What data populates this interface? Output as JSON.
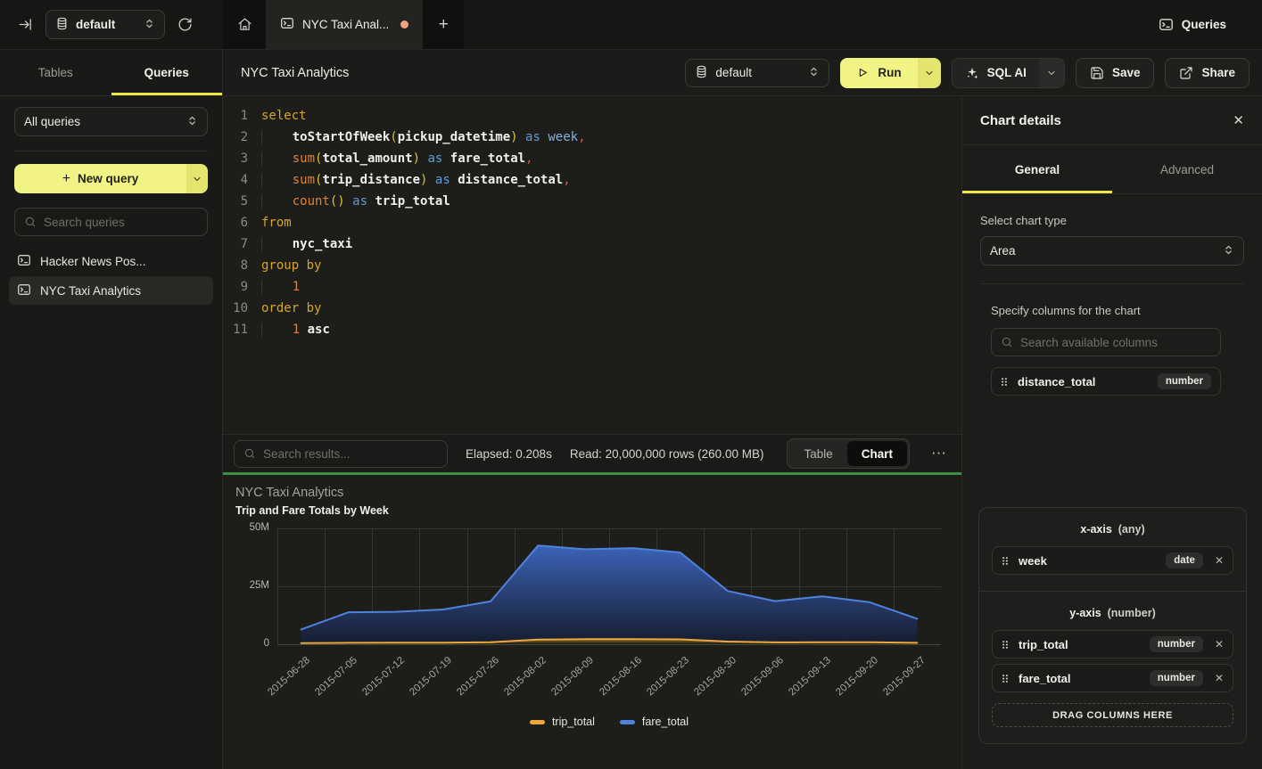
{
  "topbar": {
    "database": "default",
    "tab_title": "NYC Taxi Anal...",
    "new_tab": "+",
    "queries_nav": "Queries"
  },
  "sidebar": {
    "tabs": [
      "Tables",
      "Queries"
    ],
    "active_tab": "Queries",
    "filter": "All queries",
    "new_query": "New query",
    "search_placeholder": "Search queries",
    "queries": [
      {
        "label": "Hacker News Pos...",
        "selected": false
      },
      {
        "label": "NYC Taxi Analytics",
        "selected": true
      }
    ]
  },
  "toolbar": {
    "title": "NYC Taxi Analytics",
    "database": "default",
    "run": "Run",
    "sql_ai": "SQL AI",
    "save": "Save",
    "share": "Share"
  },
  "editor": {
    "lines": [
      {
        "n": "1",
        "t": [
          [
            "kw",
            "select"
          ]
        ]
      },
      {
        "n": "2",
        "t": [
          [
            "ind",
            "    "
          ],
          [
            "id",
            "toStartOfWeek"
          ],
          [
            "pr",
            "("
          ],
          [
            "id",
            "pickup_datetime"
          ],
          [
            "pr",
            ")"
          ],
          [
            "pl",
            " "
          ],
          [
            "as",
            "as"
          ],
          [
            "pl",
            " "
          ],
          [
            "wk",
            "week"
          ],
          [
            "cm",
            ","
          ]
        ]
      },
      {
        "n": "3",
        "t": [
          [
            "ind",
            "    "
          ],
          [
            "fn",
            "sum"
          ],
          [
            "pr",
            "("
          ],
          [
            "id",
            "total_amount"
          ],
          [
            "pr",
            ")"
          ],
          [
            "pl",
            " "
          ],
          [
            "as",
            "as"
          ],
          [
            "pl",
            " "
          ],
          [
            "id",
            "fare_total"
          ],
          [
            "cm",
            ","
          ]
        ]
      },
      {
        "n": "4",
        "t": [
          [
            "ind",
            "    "
          ],
          [
            "fn",
            "sum"
          ],
          [
            "pr",
            "("
          ],
          [
            "id",
            "trip_distance"
          ],
          [
            "pr",
            ")"
          ],
          [
            "pl",
            " "
          ],
          [
            "as",
            "as"
          ],
          [
            "pl",
            " "
          ],
          [
            "id",
            "distance_total"
          ],
          [
            "cm",
            ","
          ]
        ]
      },
      {
        "n": "5",
        "t": [
          [
            "ind",
            "    "
          ],
          [
            "fn",
            "count"
          ],
          [
            "pr",
            "()"
          ],
          [
            "pl",
            " "
          ],
          [
            "as",
            "as"
          ],
          [
            "pl",
            " "
          ],
          [
            "id",
            "trip_total"
          ]
        ]
      },
      {
        "n": "6",
        "t": [
          [
            "kw",
            "from"
          ]
        ]
      },
      {
        "n": "7",
        "t": [
          [
            "ind",
            "    "
          ],
          [
            "id",
            "nyc_taxi"
          ]
        ]
      },
      {
        "n": "8",
        "t": [
          [
            "kw",
            "group by"
          ]
        ]
      },
      {
        "n": "9",
        "t": [
          [
            "ind",
            "    "
          ],
          [
            "num",
            "1"
          ]
        ]
      },
      {
        "n": "10",
        "t": [
          [
            "kw",
            "order by"
          ]
        ]
      },
      {
        "n": "11",
        "t": [
          [
            "ind",
            "    "
          ],
          [
            "num",
            "1"
          ],
          [
            "pl",
            " "
          ],
          [
            "id",
            "asc"
          ]
        ]
      }
    ]
  },
  "results": {
    "search_placeholder": "Search results...",
    "elapsed": "Elapsed: 0.208s",
    "read": "Read: 20,000,000 rows (260.00 MB)",
    "views": [
      "Table",
      "Chart"
    ],
    "active_view": "Chart",
    "more": "⋯"
  },
  "chart_data": {
    "type": "area",
    "title": "NYC Taxi Analytics",
    "subtitle": "Trip and Fare Totals by Week",
    "x": [
      "2015-06-28",
      "2015-07-05",
      "2015-07-12",
      "2015-07-19",
      "2015-07-26",
      "2015-08-02",
      "2015-08-09",
      "2015-08-16",
      "2015-08-23",
      "2015-08-30",
      "2015-09-06",
      "2015-09-13",
      "2015-09-20",
      "2015-09-27"
    ],
    "ylim": [
      0,
      50000000
    ],
    "yticks": [
      {
        "label": "0",
        "value": 0
      },
      {
        "label": "25M",
        "value": 25000000
      },
      {
        "label": "50M",
        "value": 50000000
      }
    ],
    "grid": true,
    "legend_position": "bottom",
    "series": [
      {
        "name": "trip_total",
        "color": "#eda83c",
        "fill_top": "#8a6a1e",
        "fill_bottom": "#1d1c15",
        "values": [
          500000,
          620000,
          640000,
          650000,
          900000,
          2050000,
          2200000,
          2200000,
          2100000,
          1150000,
          820000,
          900000,
          900000,
          620000
        ]
      },
      {
        "name": "fare_total",
        "color": "#5082dd",
        "fill_top": "#3c66bf",
        "fill_bottom": "#151c30",
        "values": [
          6400000,
          13800000,
          14000000,
          15000000,
          18500000,
          42600000,
          41000000,
          41500000,
          39600000,
          23000000,
          18600000,
          20700000,
          18100000,
          11000000
        ]
      }
    ]
  },
  "chart_panel": {
    "title": "Chart details",
    "close": "✕",
    "tabs": [
      "General",
      "Advanced"
    ],
    "active_tab": "General",
    "chart_type_label": "Select chart type",
    "chart_type": "Area",
    "columns_label": "Specify columns for the chart",
    "search_placeholder": "Search available columns",
    "available_columns": [
      {
        "name": "distance_total",
        "type": "number"
      }
    ],
    "x_axis": {
      "label": "x-axis",
      "hint": "(any)",
      "columns": [
        {
          "name": "week",
          "type": "date"
        }
      ]
    },
    "y_axis": {
      "label": "y-axis",
      "hint": "(number)",
      "columns": [
        {
          "name": "trip_total",
          "type": "number"
        },
        {
          "name": "fare_total",
          "type": "number"
        }
      ]
    },
    "drop_zone": "DRAG COLUMNS HERE"
  }
}
